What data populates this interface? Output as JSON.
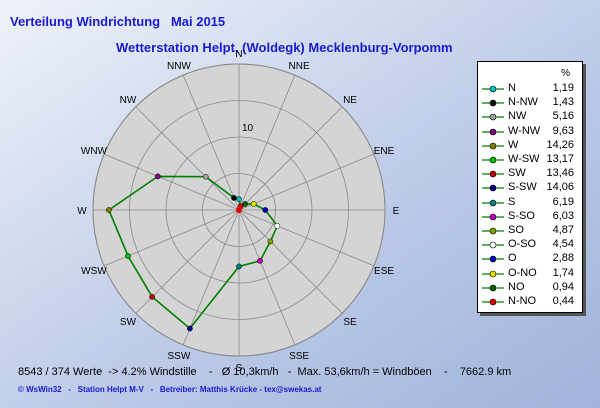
{
  "header": {
    "title": "Verteilung Windrichtung   Mai 2015",
    "subtitle": "Wetterstation Helpt, (Woldegk) Mecklenburg-Vorpomm"
  },
  "chart_data": {
    "type": "radar",
    "title": "Verteilung Windrichtung   Mai 2015",
    "subtitle": "Wetterstation Helpt, (Woldegk) Mecklenburg-Vorpomm",
    "unit": "%",
    "radial_max": 16,
    "radial_rings": [
      4,
      8,
      12,
      16
    ],
    "radial_tick_labels": [
      {
        "value": 10,
        "label": "10"
      }
    ],
    "directions": [
      "N",
      "NNE",
      "NE",
      "ENE",
      "E",
      "ESE",
      "SE",
      "SSE",
      "S",
      "SSW",
      "SW",
      "WSW",
      "W",
      "WNW",
      "NW",
      "NNW"
    ],
    "series_color": "#008000",
    "values": {
      "N": 1.19,
      "NNE": 0.44,
      "NE": 0.94,
      "ENE": 1.74,
      "E": 2.88,
      "ESE": 4.54,
      "SE": 4.87,
      "SSE": 6.03,
      "S": 6.19,
      "SSW": 14.06,
      "SW": 13.46,
      "WSW": 13.17,
      "W": 14.26,
      "WNW": 9.63,
      "NW": 5.16,
      "NNW": 1.43
    },
    "legend": [
      {
        "label": "N",
        "value": "1,19",
        "color": "#00c0c0"
      },
      {
        "label": "N-NW",
        "value": "1,43",
        "color": "#000000"
      },
      {
        "label": "NW",
        "value": "5,16",
        "color": "#a0a0a0"
      },
      {
        "label": "W-NW",
        "value": "9,63",
        "color": "#800080"
      },
      {
        "label": "W",
        "value": "14,26",
        "color": "#808000"
      },
      {
        "label": "W-SW",
        "value": "13,17",
        "color": "#00c000"
      },
      {
        "label": "SW",
        "value": "13,46",
        "color": "#c00000"
      },
      {
        "label": "S-SW",
        "value": "14,06",
        "color": "#000080"
      },
      {
        "label": "S",
        "value": "6,19",
        "color": "#008080"
      },
      {
        "label": "S-SO",
        "value": "6,03",
        "color": "#c000c0"
      },
      {
        "label": "SO",
        "value": "4,87",
        "color": "#80a000"
      },
      {
        "label": "O-SO",
        "value": "4,54",
        "color": "#ffffff"
      },
      {
        "label": "O",
        "value": "2,88",
        "color": "#0000c0"
      },
      {
        "label": "O-NO",
        "value": "1,74",
        "color": "#e0e000"
      },
      {
        "label": "NO",
        "value": "0,94",
        "color": "#006000"
      },
      {
        "label": "N-NO",
        "value": "0,44",
        "color": "#e00000"
      }
    ],
    "legend_placement": "right"
  },
  "footer": {
    "stats": "8543 / 374 Werte  -> 4.2% Windstille    -   Ø 10,3km/h   -  Max. 53,6km/h = Windböen    -    7662.9 km",
    "credits": "© WsWin32   -   Station Helpt M-V   -   Betreiber: Matthis Krücke - tex@swekas.at"
  }
}
